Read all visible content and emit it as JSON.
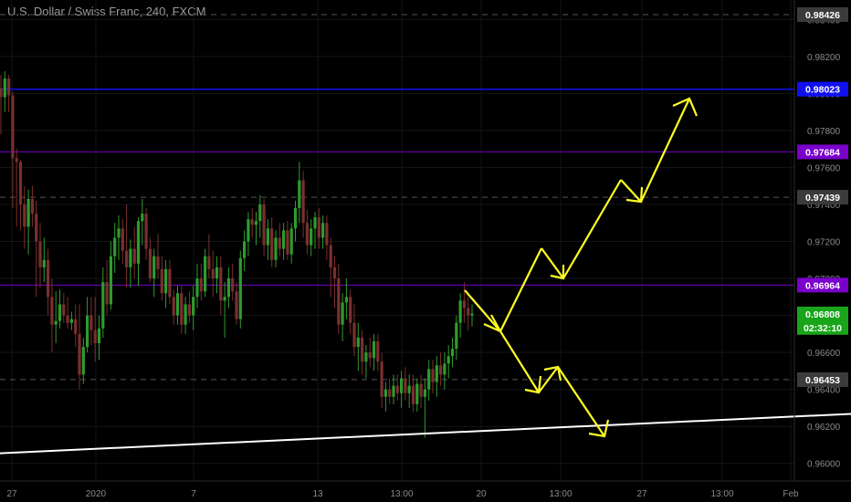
{
  "header": {
    "symbol_title": "U.S. Dollar / Swiss Franc, 240, FXCM"
  },
  "colors": {
    "background": "#000000",
    "up_candle": "#2e9b2e",
    "down_candle": "#7a2f2f",
    "axis_text": "#8a8a8a",
    "blue_line": "#1010ee",
    "purple_line": "#7a00cc",
    "dashed_line": "#555555",
    "trend_line": "#ffffff",
    "arrow": "#ffff22"
  },
  "chart_data": {
    "type": "candlestick",
    "ylim": [
      0.95905,
      0.98505
    ],
    "y_ticks": [
      "0.98400",
      "0.98200",
      "0.98000",
      "0.97800",
      "0.97600",
      "0.97400",
      "0.97200",
      "0.97000",
      "0.96800",
      "0.96600",
      "0.96400",
      "0.96200",
      "0.96000"
    ],
    "x_ticks": [
      "27",
      "2020",
      "7",
      "13",
      "13:00",
      "20",
      "13:00",
      "27",
      "13:00",
      "Feb"
    ],
    "price_labels": [
      {
        "value": "0.98426",
        "price": 0.98426,
        "style": "gray"
      },
      {
        "value": "0.98023",
        "price": 0.98023,
        "style": "blue"
      },
      {
        "value": "0.97684",
        "price": 0.97684,
        "style": "purple"
      },
      {
        "value": "0.97439",
        "price": 0.97439,
        "style": "gray"
      },
      {
        "value": "0.96964",
        "price": 0.96964,
        "style": "purple"
      },
      {
        "value": "0.96808",
        "price": 0.96808,
        "style": "green"
      },
      {
        "value": "02:32:10",
        "price": 0.96735,
        "style": "green"
      },
      {
        "value": "0.96453",
        "price": 0.96453,
        "style": "gray"
      }
    ],
    "horizontal_lines": [
      {
        "price": 0.98426,
        "style": "dashed"
      },
      {
        "price": 0.98023,
        "style": "blue"
      },
      {
        "price": 0.97684,
        "style": "purple"
      },
      {
        "price": 0.97439,
        "style": "dashed"
      },
      {
        "price": 0.96964,
        "style": "purple"
      },
      {
        "price": 0.96453,
        "style": "dashed"
      }
    ],
    "trend_line": {
      "from": [
        0,
        0.96055
      ],
      "to": [
        217,
        0.96268
      ]
    },
    "candles": [
      [
        0.9803,
        0.981,
        0.9778,
        0.9798
      ],
      [
        0.9798,
        0.9812,
        0.979,
        0.9808
      ],
      [
        0.9808,
        0.981,
        0.979,
        0.9799
      ],
      [
        0.9799,
        0.9801,
        0.9738,
        0.9765
      ],
      [
        0.9765,
        0.977,
        0.9728,
        0.9763
      ],
      [
        0.9763,
        0.9764,
        0.9726,
        0.974
      ],
      [
        0.974,
        0.975,
        0.9716,
        0.9728
      ],
      [
        0.9728,
        0.9748,
        0.9713,
        0.9743
      ],
      [
        0.9743,
        0.975,
        0.9728,
        0.9735
      ],
      [
        0.9735,
        0.9742,
        0.969,
        0.972
      ],
      [
        0.972,
        0.973,
        0.9695,
        0.9706
      ],
      [
        0.9706,
        0.9722,
        0.9698,
        0.971
      ],
      [
        0.971,
        0.9716,
        0.968,
        0.969
      ],
      [
        0.969,
        0.97,
        0.966,
        0.9675
      ],
      [
        0.9675,
        0.9693,
        0.9665,
        0.9677
      ],
      [
        0.9677,
        0.9694,
        0.9673,
        0.9686
      ],
      [
        0.9686,
        0.9692,
        0.9676,
        0.968
      ],
      [
        0.968,
        0.969,
        0.9673,
        0.9676
      ],
      [
        0.9676,
        0.9682,
        0.9672,
        0.9678
      ],
      [
        0.9678,
        0.9686,
        0.9663,
        0.967
      ],
      [
        0.967,
        0.9686,
        0.964,
        0.9648
      ],
      [
        0.9648,
        0.9668,
        0.9643,
        0.9663
      ],
      [
        0.9663,
        0.969,
        0.966,
        0.968
      ],
      [
        0.968,
        0.969,
        0.9664,
        0.9672
      ],
      [
        0.9672,
        0.969,
        0.9655,
        0.9665
      ],
      [
        0.9665,
        0.968,
        0.9656,
        0.9673
      ],
      [
        0.9673,
        0.9706,
        0.9668,
        0.9698
      ],
      [
        0.9698,
        0.971,
        0.968,
        0.9686
      ],
      [
        0.9686,
        0.972,
        0.9683,
        0.9712
      ],
      [
        0.9712,
        0.973,
        0.9703,
        0.9722
      ],
      [
        0.9722,
        0.9734,
        0.971,
        0.9727
      ],
      [
        0.9727,
        0.9732,
        0.9708,
        0.9715
      ],
      [
        0.9715,
        0.974,
        0.9695,
        0.9706
      ],
      [
        0.9706,
        0.9721,
        0.9695,
        0.9716
      ],
      [
        0.9716,
        0.9728,
        0.97,
        0.9708
      ],
      [
        0.9708,
        0.9733,
        0.9696,
        0.9731
      ],
      [
        0.9731,
        0.9743,
        0.9718,
        0.9735
      ],
      [
        0.9735,
        0.9738,
        0.971,
        0.9716
      ],
      [
        0.9716,
        0.9722,
        0.9698,
        0.97
      ],
      [
        0.97,
        0.9716,
        0.969,
        0.9712
      ],
      [
        0.9712,
        0.9724,
        0.97,
        0.9705
      ],
      [
        0.9705,
        0.9712,
        0.9688,
        0.9692
      ],
      [
        0.9692,
        0.971,
        0.9684,
        0.9705
      ],
      [
        0.9705,
        0.971,
        0.9686,
        0.969
      ],
      [
        0.969,
        0.9694,
        0.9675,
        0.968
      ],
      [
        0.968,
        0.9696,
        0.9675,
        0.9692
      ],
      [
        0.9692,
        0.9696,
        0.967,
        0.9675
      ],
      [
        0.9675,
        0.969,
        0.967,
        0.9686
      ],
      [
        0.9686,
        0.9693,
        0.9676,
        0.968
      ],
      [
        0.968,
        0.9696,
        0.9672,
        0.969
      ],
      [
        0.969,
        0.9708,
        0.9684,
        0.97
      ],
      [
        0.97,
        0.9708,
        0.9688,
        0.9693
      ],
      [
        0.9693,
        0.9716,
        0.969,
        0.9712
      ],
      [
        0.9712,
        0.9724,
        0.97,
        0.9705
      ],
      [
        0.9705,
        0.9715,
        0.969,
        0.97
      ],
      [
        0.97,
        0.9712,
        0.9692,
        0.9706
      ],
      [
        0.9706,
        0.9712,
        0.968,
        0.9688
      ],
      [
        0.9688,
        0.9698,
        0.9668,
        0.969
      ],
      [
        0.969,
        0.9706,
        0.9684,
        0.97
      ],
      [
        0.97,
        0.9708,
        0.9688,
        0.9693
      ],
      [
        0.9693,
        0.9698,
        0.9675,
        0.9678
      ],
      [
        0.9678,
        0.9715,
        0.9673,
        0.9711
      ],
      [
        0.9711,
        0.9726,
        0.9704,
        0.972
      ],
      [
        0.972,
        0.9736,
        0.9712,
        0.9732
      ],
      [
        0.9732,
        0.9738,
        0.9722,
        0.9729
      ],
      [
        0.9729,
        0.9736,
        0.9718,
        0.9731
      ],
      [
        0.9731,
        0.9745,
        0.9722,
        0.974
      ],
      [
        0.974,
        0.9743,
        0.9712,
        0.9718
      ],
      [
        0.9718,
        0.9732,
        0.971,
        0.9727
      ],
      [
        0.9727,
        0.9733,
        0.9706,
        0.971
      ],
      [
        0.971,
        0.9726,
        0.9706,
        0.9722
      ],
      [
        0.9722,
        0.973,
        0.9712,
        0.9716
      ],
      [
        0.9716,
        0.973,
        0.971,
        0.9726
      ],
      [
        0.9726,
        0.9731,
        0.971,
        0.9713
      ],
      [
        0.9713,
        0.973,
        0.9708,
        0.9727
      ],
      [
        0.9727,
        0.9742,
        0.972,
        0.9738
      ],
      [
        0.9738,
        0.9763,
        0.973,
        0.9753
      ],
      [
        0.9753,
        0.9758,
        0.9722,
        0.973
      ],
      [
        0.973,
        0.9737,
        0.9713,
        0.9718
      ],
      [
        0.9718,
        0.9732,
        0.9712,
        0.9727
      ],
      [
        0.9727,
        0.9736,
        0.9716,
        0.9733
      ],
      [
        0.9733,
        0.9738,
        0.9716,
        0.9722
      ],
      [
        0.9722,
        0.9734,
        0.9716,
        0.973
      ],
      [
        0.973,
        0.9734,
        0.971,
        0.9718
      ],
      [
        0.9718,
        0.9722,
        0.969,
        0.9706
      ],
      [
        0.9706,
        0.9712,
        0.9684,
        0.97
      ],
      [
        0.97,
        0.9708,
        0.967,
        0.9675
      ],
      [
        0.9675,
        0.9692,
        0.9666,
        0.9687
      ],
      [
        0.9687,
        0.97,
        0.9678,
        0.969
      ],
      [
        0.969,
        0.9694,
        0.967,
        0.9676
      ],
      [
        0.9676,
        0.9686,
        0.9658,
        0.9663
      ],
      [
        0.9663,
        0.9676,
        0.965,
        0.9668
      ],
      [
        0.9668,
        0.9672,
        0.9648,
        0.9655
      ],
      [
        0.9655,
        0.9664,
        0.9646,
        0.966
      ],
      [
        0.966,
        0.9668,
        0.9652,
        0.9657
      ],
      [
        0.9657,
        0.967,
        0.965,
        0.9666
      ],
      [
        0.9666,
        0.967,
        0.965,
        0.9655
      ],
      [
        0.9655,
        0.966,
        0.963,
        0.9636
      ],
      [
        0.9636,
        0.9644,
        0.9628,
        0.964
      ],
      [
        0.964,
        0.9646,
        0.9632,
        0.9636
      ],
      [
        0.9636,
        0.9648,
        0.9632,
        0.9642
      ],
      [
        0.9642,
        0.9648,
        0.9634,
        0.9638
      ],
      [
        0.9638,
        0.965,
        0.963,
        0.9646
      ],
      [
        0.9646,
        0.9652,
        0.9634,
        0.9638
      ],
      [
        0.9638,
        0.9648,
        0.963,
        0.9642
      ],
      [
        0.9642,
        0.9648,
        0.9628,
        0.9632
      ],
      [
        0.9632,
        0.9646,
        0.9628,
        0.9643
      ],
      [
        0.9643,
        0.9648,
        0.963,
        0.9636
      ],
      [
        0.9636,
        0.9646,
        0.9614,
        0.964
      ],
      [
        0.964,
        0.9656,
        0.9634,
        0.9651
      ],
      [
        0.9651,
        0.9656,
        0.9638,
        0.9644
      ],
      [
        0.9644,
        0.9658,
        0.9636,
        0.9653
      ],
      [
        0.9653,
        0.966,
        0.9642,
        0.9648
      ],
      [
        0.9648,
        0.966,
        0.964,
        0.9654
      ],
      [
        0.9654,
        0.9664,
        0.9646,
        0.9658
      ],
      [
        0.9658,
        0.9668,
        0.9652,
        0.9662
      ],
      [
        0.9662,
        0.968,
        0.9656,
        0.9676
      ],
      [
        0.9676,
        0.9692,
        0.9668,
        0.9688
      ],
      [
        0.9688,
        0.9698,
        0.9676,
        0.9684
      ],
      [
        0.9684,
        0.969,
        0.9672,
        0.968
      ],
      [
        0.968,
        0.9686,
        0.9674,
        0.9681
      ]
    ]
  }
}
